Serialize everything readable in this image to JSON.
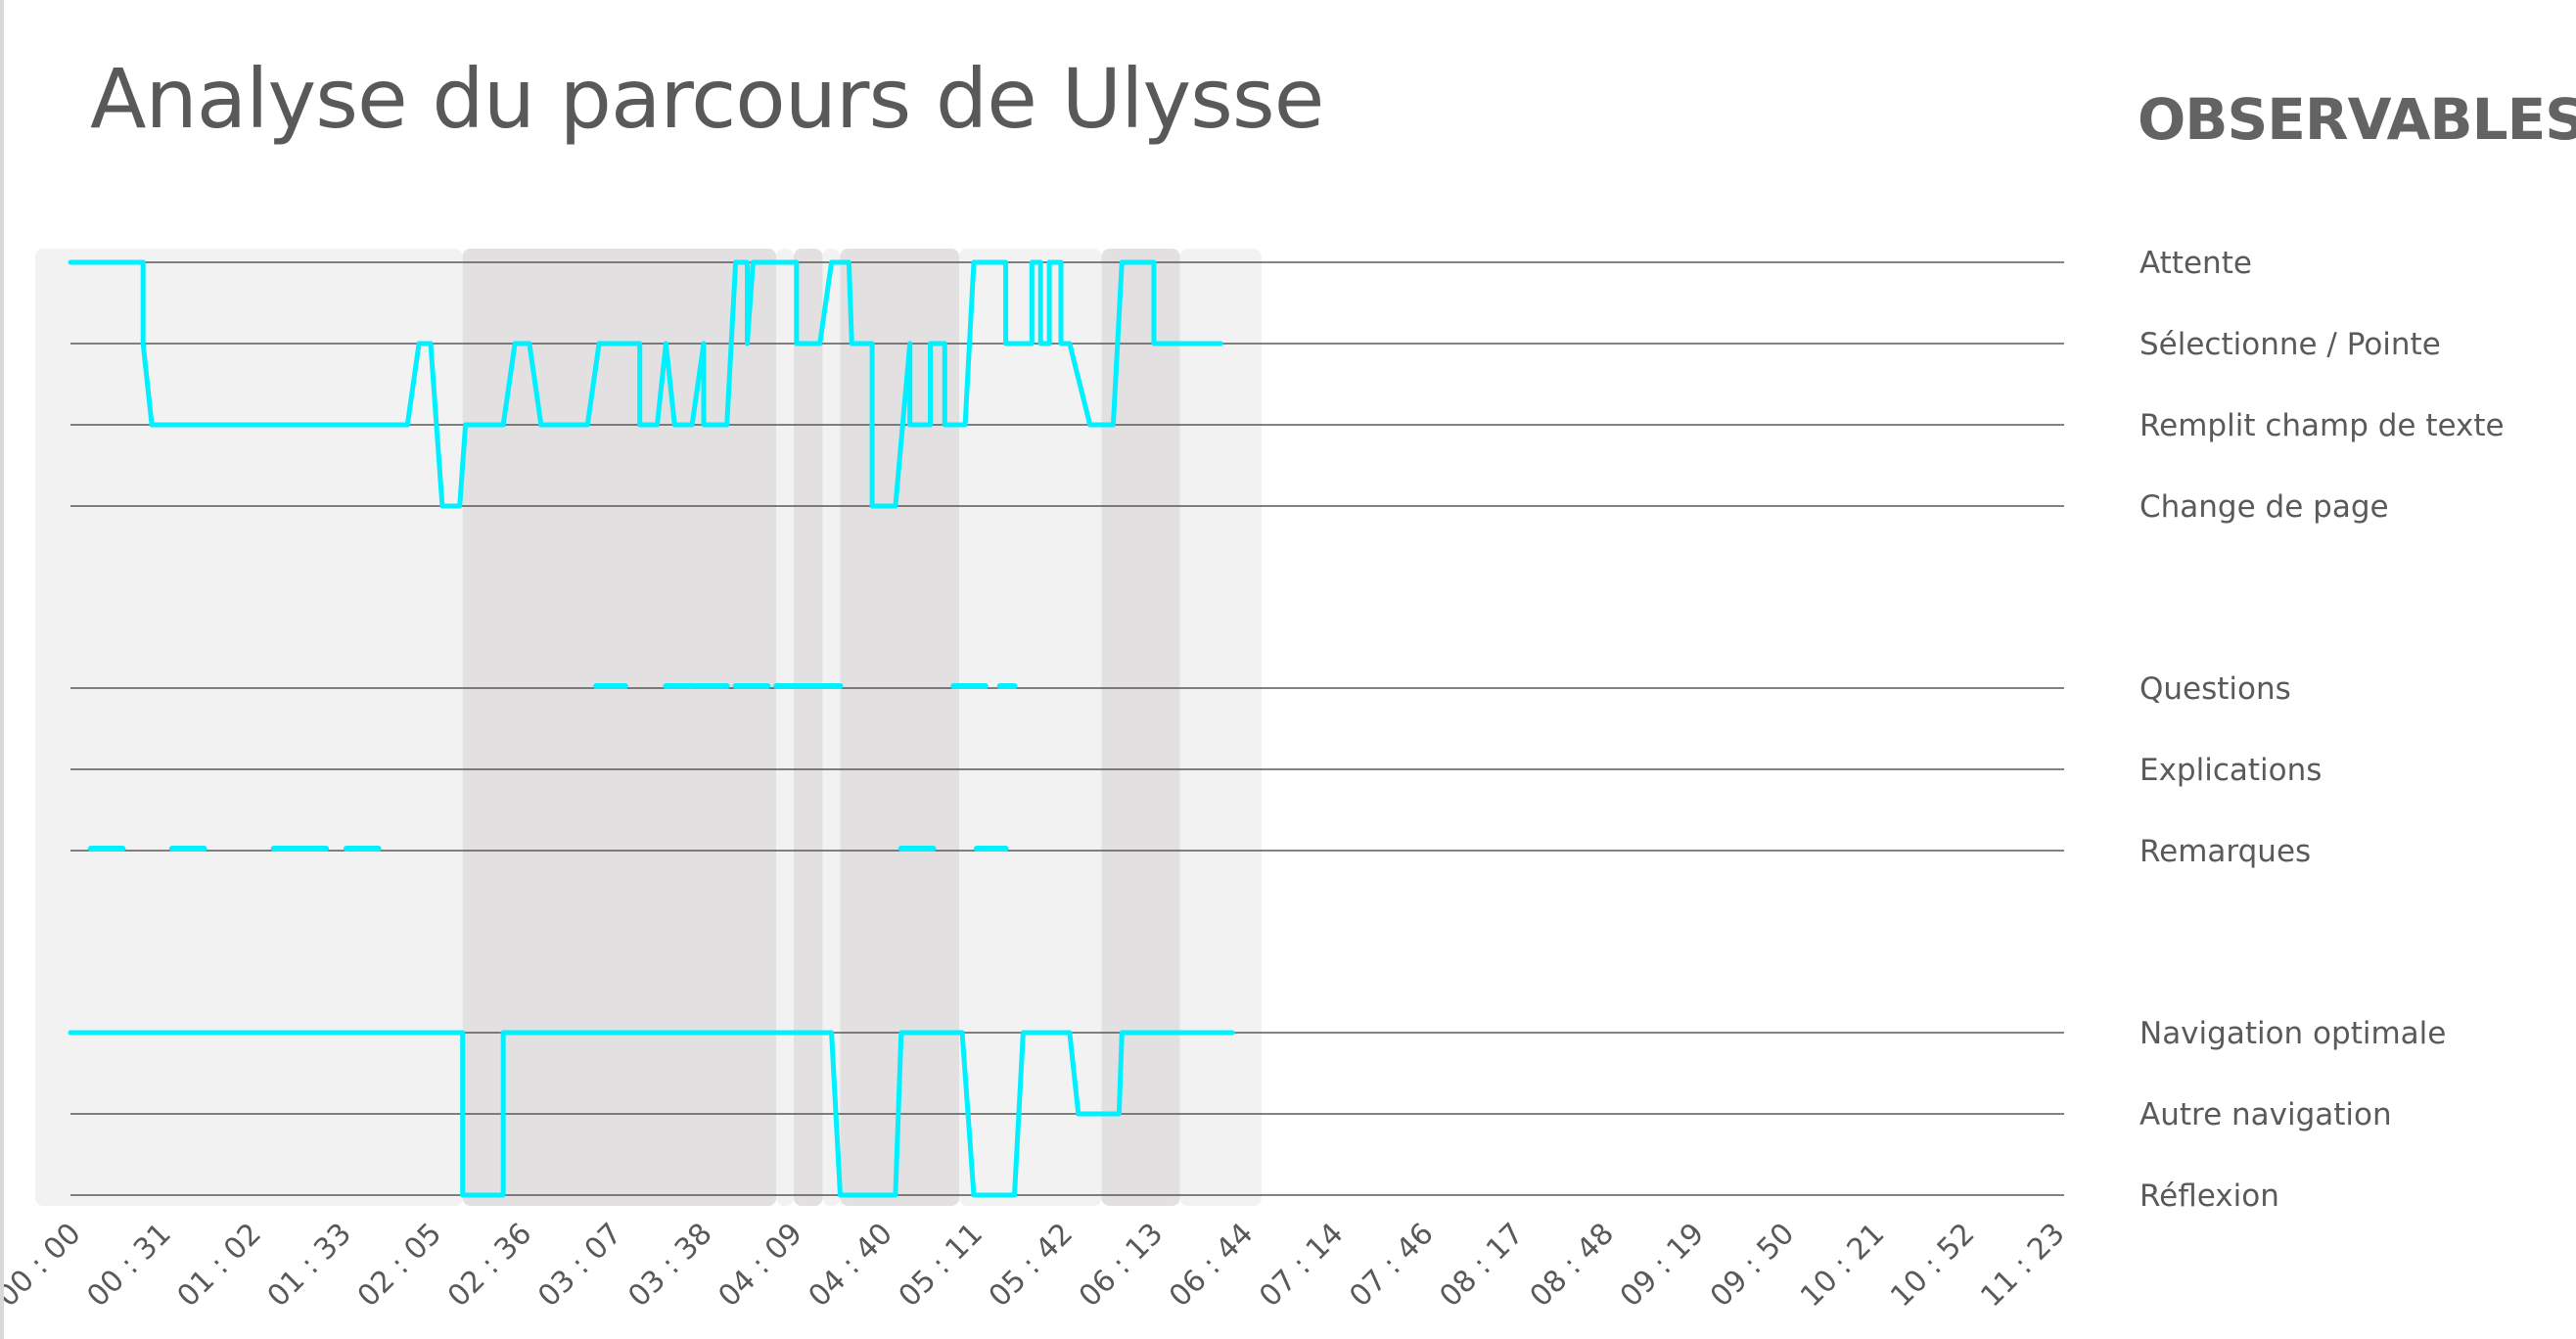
{
  "title": "Analyse du parcours de Ulysse",
  "legend_title": "OBSERVABLES",
  "colors": {
    "series": "#00f0ff",
    "band_light": "#f2f2f2",
    "band_dark": "#e2e0e0",
    "gridline": "#595959",
    "text": "#595959"
  },
  "chart_data": {
    "type": "line",
    "title": "Analyse du parcours de Ulysse",
    "grid": true,
    "legend_placement": "right",
    "x_ticks": [
      "00 : 00",
      "00 : 31",
      "01 : 02",
      "01 : 33",
      "02 : 05",
      "02 : 36",
      "03 : 07",
      "03 : 38",
      "04 : 09",
      "04 : 40",
      "05 : 11",
      "05 : 42",
      "06 : 13",
      "06 : 44",
      "07 : 14",
      "07 : 46",
      "08 : 17",
      "08 : 48",
      "09 : 19",
      "09 : 50",
      "10 : 21",
      "10 : 52",
      "11 : 23"
    ],
    "x_range_seconds": [
      0,
      683
    ],
    "rows": [
      "Attente",
      "Sélectionne / Pointe",
      "Remplit champ de texte",
      "Change de page",
      "Questions",
      "Explications",
      "Remarques",
      "Navigation optimale",
      "Autre navigation",
      "Réflexion"
    ],
    "bands": [
      {
        "start": 0,
        "end": 135,
        "shade": "light"
      },
      {
        "start": 135,
        "end": 243,
        "shade": "dark"
      },
      {
        "start": 243,
        "end": 249,
        "shade": "light"
      },
      {
        "start": 249,
        "end": 259,
        "shade": "dark"
      },
      {
        "start": 259,
        "end": 265,
        "shade": "light"
      },
      {
        "start": 265,
        "end": 306,
        "shade": "dark"
      },
      {
        "start": 306,
        "end": 355,
        "shade": "light"
      },
      {
        "start": 355,
        "end": 382,
        "shade": "dark"
      },
      {
        "start": 382,
        "end": 410,
        "shade": "light"
      }
    ],
    "series": [
      {
        "kind": "activity",
        "points": [
          [
            0,
            "Attente"
          ],
          [
            25,
            "Attente"
          ],
          [
            25,
            "Sélectionne / Pointe"
          ],
          [
            28,
            "Remplit champ de texte"
          ],
          [
            116,
            "Remplit champ de texte"
          ],
          [
            120,
            "Sélectionne / Pointe"
          ],
          [
            124,
            "Sélectionne / Pointe"
          ],
          [
            128,
            "Change de page"
          ],
          [
            134,
            "Change de page"
          ],
          [
            136,
            "Remplit champ de texte"
          ],
          [
            149,
            "Remplit champ de texte"
          ],
          [
            153,
            "Sélectionne / Pointe"
          ],
          [
            158,
            "Sélectionne / Pointe"
          ],
          [
            162,
            "Remplit champ de texte"
          ],
          [
            178,
            "Remplit champ de texte"
          ],
          [
            182,
            "Sélectionne / Pointe"
          ],
          [
            196,
            "Sélectionne / Pointe"
          ],
          [
            196,
            "Remplit champ de texte"
          ],
          [
            202,
            "Remplit champ de texte"
          ],
          [
            205,
            "Sélectionne / Pointe"
          ],
          [
            208,
            "Remplit champ de texte"
          ],
          [
            214,
            "Remplit champ de texte"
          ],
          [
            218,
            "Sélectionne / Pointe"
          ],
          [
            218,
            "Remplit champ de texte"
          ],
          [
            226,
            "Remplit champ de texte"
          ],
          [
            229,
            "Attente"
          ],
          [
            233,
            "Attente"
          ],
          [
            233,
            "Sélectionne / Pointe"
          ],
          [
            235,
            "Attente"
          ],
          [
            250,
            "Attente"
          ],
          [
            250,
            "Sélectionne / Pointe"
          ],
          [
            258,
            "Sélectionne / Pointe"
          ],
          [
            262,
            "Attente"
          ],
          [
            268,
            "Attente"
          ],
          [
            269,
            "Sélectionne / Pointe"
          ],
          [
            276,
            "Sélectionne / Pointe"
          ],
          [
            276,
            "Change de page"
          ],
          [
            284,
            "Change de page"
          ],
          [
            289,
            "Sélectionne / Pointe"
          ],
          [
            289,
            "Remplit champ de texte"
          ],
          [
            296,
            "Remplit champ de texte"
          ],
          [
            296,
            "Sélectionne / Pointe"
          ],
          [
            301,
            "Sélectionne / Pointe"
          ],
          [
            301,
            "Remplit champ de texte"
          ],
          [
            308,
            "Remplit champ de texte"
          ],
          [
            311,
            "Attente"
          ],
          [
            322,
            "Attente"
          ],
          [
            322,
            "Sélectionne / Pointe"
          ],
          [
            331,
            "Sélectionne / Pointe"
          ],
          [
            331,
            "Attente"
          ],
          [
            334,
            "Attente"
          ],
          [
            334,
            "Sélectionne / Pointe"
          ],
          [
            337,
            "Sélectionne / Pointe"
          ],
          [
            337,
            "Attente"
          ],
          [
            341,
            "Attente"
          ],
          [
            341,
            "Sélectionne / Pointe"
          ],
          [
            344,
            "Sélectionne / Pointe"
          ],
          [
            351,
            "Remplit champ de texte"
          ],
          [
            359,
            "Remplit champ de texte"
          ],
          [
            362,
            "Attente"
          ],
          [
            373,
            "Attente"
          ],
          [
            373,
            "Sélectionne / Pointe"
          ],
          [
            396,
            "Sélectionne / Pointe"
          ]
        ]
      },
      {
        "kind": "navigation",
        "points": [
          [
            0,
            "Navigation optimale"
          ],
          [
            135,
            "Navigation optimale"
          ],
          [
            135,
            "Réflexion"
          ],
          [
            149,
            "Réflexion"
          ],
          [
            149,
            "Navigation optimale"
          ],
          [
            262,
            "Navigation optimale"
          ],
          [
            265,
            "Réflexion"
          ],
          [
            284,
            "Réflexion"
          ],
          [
            286,
            "Navigation optimale"
          ],
          [
            307,
            "Navigation optimale"
          ],
          [
            311,
            "Réflexion"
          ],
          [
            325,
            "Réflexion"
          ],
          [
            328,
            "Navigation optimale"
          ],
          [
            344,
            "Navigation optimale"
          ],
          [
            347,
            "Autre navigation"
          ],
          [
            361,
            "Autre navigation"
          ],
          [
            362,
            "Navigation optimale"
          ],
          [
            400,
            "Navigation optimale"
          ]
        ]
      },
      {
        "kind": "events",
        "segments": [
          {
            "row": "Questions",
            "start": 181,
            "end": 191
          },
          {
            "row": "Questions",
            "start": 205,
            "end": 215
          },
          {
            "row": "Questions",
            "start": 216,
            "end": 226
          },
          {
            "row": "Questions",
            "start": 229,
            "end": 240
          },
          {
            "row": "Questions",
            "start": 243,
            "end": 265
          },
          {
            "row": "Questions",
            "start": 304,
            "end": 315
          },
          {
            "row": "Questions",
            "start": 320,
            "end": 325
          },
          {
            "row": "Remarques",
            "start": 7,
            "end": 18
          },
          {
            "row": "Remarques",
            "start": 35,
            "end": 46
          },
          {
            "row": "Remarques",
            "start": 70,
            "end": 88
          },
          {
            "row": "Remarques",
            "start": 95,
            "end": 106
          },
          {
            "row": "Remarques",
            "start": 286,
            "end": 297
          },
          {
            "row": "Remarques",
            "start": 312,
            "end": 322
          }
        ]
      }
    ]
  }
}
